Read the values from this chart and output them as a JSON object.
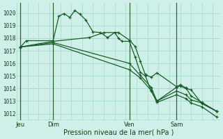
{
  "background_color": "#cff0e8",
  "grid_color": "#a0d8c8",
  "line_color": "#1a5c28",
  "axis_color": "#336633",
  "title": "Pression niveau de la mer( hPa )",
  "ylabel_values": [
    1012,
    1013,
    1014,
    1015,
    1016,
    1017,
    1018,
    1019,
    1020
  ],
  "ylim": [
    1011.5,
    1020.8
  ],
  "day_labels": [
    "Jeu",
    "Dim",
    "Ven",
    "Sam"
  ],
  "day_positions": [
    0,
    4.5,
    15.0,
    21.5
  ],
  "xlim": [
    -0.5,
    27.5
  ],
  "series1": [
    [
      0.0,
      1017.3
    ],
    [
      0.8,
      1017.8
    ],
    [
      4.5,
      1017.8
    ],
    [
      5.3,
      1019.75
    ],
    [
      6.0,
      1019.95
    ],
    [
      6.8,
      1019.65
    ],
    [
      7.5,
      1020.2
    ],
    [
      8.2,
      1019.9
    ],
    [
      9.0,
      1019.45
    ],
    [
      10.0,
      1018.5
    ],
    [
      11.0,
      1018.45
    ],
    [
      12.0,
      1018.05
    ],
    [
      13.0,
      1018.45
    ],
    [
      13.5,
      1018.0
    ],
    [
      14.0,
      1017.75
    ],
    [
      15.0,
      1017.75
    ],
    [
      15.8,
      1016.5
    ],
    [
      16.5,
      1015.3
    ],
    [
      17.2,
      1015.0
    ],
    [
      18.0,
      1013.8
    ],
    [
      18.8,
      1013.0
    ],
    [
      21.5,
      1014.1
    ],
    [
      22.0,
      1014.2
    ],
    [
      22.8,
      1014.0
    ],
    [
      23.5,
      1013.9
    ],
    [
      25.0,
      1012.8
    ],
    [
      27.0,
      1012.2
    ]
  ],
  "series2": [
    [
      0.0,
      1017.3
    ],
    [
      4.5,
      1017.75
    ],
    [
      9.5,
      1018.05
    ],
    [
      11.5,
      1018.45
    ],
    [
      13.5,
      1018.45
    ],
    [
      15.0,
      1017.85
    ],
    [
      15.8,
      1017.35
    ],
    [
      16.5,
      1016.2
    ],
    [
      17.2,
      1015.1
    ],
    [
      18.0,
      1014.9
    ],
    [
      18.8,
      1015.25
    ],
    [
      21.5,
      1014.15
    ],
    [
      22.0,
      1014.3
    ],
    [
      22.8,
      1014.05
    ],
    [
      23.5,
      1013.4
    ],
    [
      25.0,
      1012.9
    ],
    [
      27.0,
      1012.2
    ]
  ],
  "series3": [
    [
      0.0,
      1017.3
    ],
    [
      4.5,
      1017.65
    ],
    [
      15.0,
      1016.0
    ],
    [
      16.5,
      1015.05
    ],
    [
      18.0,
      1014.1
    ],
    [
      18.8,
      1013.0
    ],
    [
      21.5,
      1013.8
    ],
    [
      22.8,
      1013.5
    ],
    [
      23.5,
      1013.1
    ],
    [
      25.0,
      1012.85
    ],
    [
      27.0,
      1012.2
    ]
  ],
  "series4": [
    [
      0.0,
      1017.3
    ],
    [
      4.5,
      1017.55
    ],
    [
      15.0,
      1015.5
    ],
    [
      16.5,
      1014.85
    ],
    [
      18.0,
      1013.85
    ],
    [
      18.8,
      1012.9
    ],
    [
      21.5,
      1013.5
    ],
    [
      22.8,
      1013.2
    ],
    [
      23.5,
      1012.85
    ],
    [
      25.0,
      1012.55
    ],
    [
      27.0,
      1011.75
    ]
  ]
}
